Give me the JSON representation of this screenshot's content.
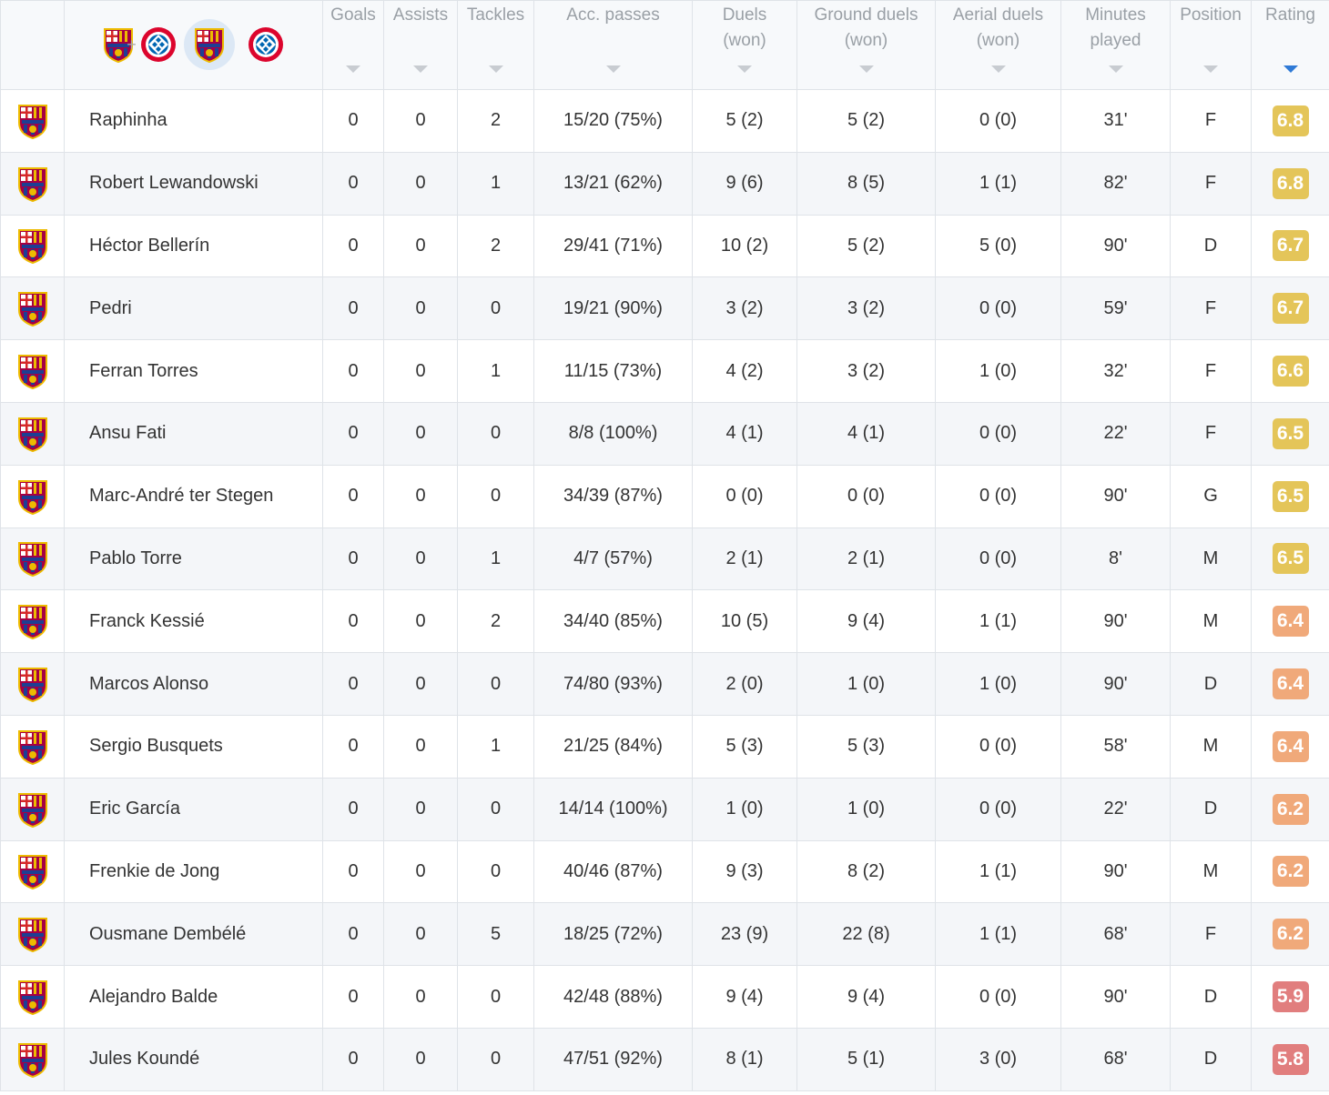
{
  "columns": [
    {
      "key": "goals",
      "label": "Goals"
    },
    {
      "key": "assists",
      "label": "Assists"
    },
    {
      "key": "tackles",
      "label": "Tackles"
    },
    {
      "key": "passes",
      "label": "Acc. passes"
    },
    {
      "key": "duels",
      "label": "Duels (won)"
    },
    {
      "key": "ground",
      "label": "Ground duels (won)"
    },
    {
      "key": "aerial",
      "label": "Aerial duels (won)"
    },
    {
      "key": "minutes",
      "label": "Minutes played"
    },
    {
      "key": "position",
      "label": "Position"
    },
    {
      "key": "rating",
      "label": "Rating"
    }
  ],
  "filters": {
    "both_separator": "+",
    "selected": "barcelona"
  },
  "colors": {
    "rating_high": "#e4c559",
    "rating_mid": "#f0a97a",
    "rating_low": "#e17e7e",
    "sort_active": "#2f7ad6"
  },
  "players": [
    {
      "name": "Raphinha",
      "goals": "0",
      "assists": "0",
      "tackles": "2",
      "passes": "15/20 (75%)",
      "duels": "5 (2)",
      "ground": "5 (2)",
      "aerial": "0 (0)",
      "minutes": "31'",
      "position": "F",
      "rating": "6.8"
    },
    {
      "name": "Robert Lewandowski",
      "goals": "0",
      "assists": "0",
      "tackles": "1",
      "passes": "13/21 (62%)",
      "duels": "9 (6)",
      "ground": "8 (5)",
      "aerial": "1 (1)",
      "minutes": "82'",
      "position": "F",
      "rating": "6.8"
    },
    {
      "name": "Héctor Bellerín",
      "goals": "0",
      "assists": "0",
      "tackles": "2",
      "passes": "29/41 (71%)",
      "duels": "10 (2)",
      "ground": "5 (2)",
      "aerial": "5 (0)",
      "minutes": "90'",
      "position": "D",
      "rating": "6.7"
    },
    {
      "name": "Pedri",
      "goals": "0",
      "assists": "0",
      "tackles": "0",
      "passes": "19/21 (90%)",
      "duels": "3 (2)",
      "ground": "3 (2)",
      "aerial": "0 (0)",
      "minutes": "59'",
      "position": "F",
      "rating": "6.7"
    },
    {
      "name": "Ferran Torres",
      "goals": "0",
      "assists": "0",
      "tackles": "1",
      "passes": "11/15 (73%)",
      "duels": "4 (2)",
      "ground": "3 (2)",
      "aerial": "1 (0)",
      "minutes": "32'",
      "position": "F",
      "rating": "6.6"
    },
    {
      "name": "Ansu Fati",
      "goals": "0",
      "assists": "0",
      "tackles": "0",
      "passes": "8/8 (100%)",
      "duels": "4 (1)",
      "ground": "4 (1)",
      "aerial": "0 (0)",
      "minutes": "22'",
      "position": "F",
      "rating": "6.5"
    },
    {
      "name": "Marc-André ter Stegen",
      "goals": "0",
      "assists": "0",
      "tackles": "0",
      "passes": "34/39 (87%)",
      "duels": "0 (0)",
      "ground": "0 (0)",
      "aerial": "0 (0)",
      "minutes": "90'",
      "position": "G",
      "rating": "6.5"
    },
    {
      "name": "Pablo Torre",
      "goals": "0",
      "assists": "0",
      "tackles": "1",
      "passes": "4/7 (57%)",
      "duels": "2 (1)",
      "ground": "2 (1)",
      "aerial": "0 (0)",
      "minutes": "8'",
      "position": "M",
      "rating": "6.5"
    },
    {
      "name": "Franck Kessié",
      "goals": "0",
      "assists": "0",
      "tackles": "2",
      "passes": "34/40 (85%)",
      "duels": "10 (5)",
      "ground": "9 (4)",
      "aerial": "1 (1)",
      "minutes": "90'",
      "position": "M",
      "rating": "6.4"
    },
    {
      "name": "Marcos Alonso",
      "goals": "0",
      "assists": "0",
      "tackles": "0",
      "passes": "74/80 (93%)",
      "duels": "2 (0)",
      "ground": "1 (0)",
      "aerial": "1 (0)",
      "minutes": "90'",
      "position": "D",
      "rating": "6.4"
    },
    {
      "name": "Sergio Busquets",
      "goals": "0",
      "assists": "0",
      "tackles": "1",
      "passes": "21/25 (84%)",
      "duels": "5 (3)",
      "ground": "5 (3)",
      "aerial": "0 (0)",
      "minutes": "58'",
      "position": "M",
      "rating": "6.4"
    },
    {
      "name": "Eric García",
      "goals": "0",
      "assists": "0",
      "tackles": "0",
      "passes": "14/14 (100%)",
      "duels": "1 (0)",
      "ground": "1 (0)",
      "aerial": "0 (0)",
      "minutes": "22'",
      "position": "D",
      "rating": "6.2"
    },
    {
      "name": "Frenkie de Jong",
      "goals": "0",
      "assists": "0",
      "tackles": "0",
      "passes": "40/46 (87%)",
      "duels": "9 (3)",
      "ground": "8 (2)",
      "aerial": "1 (1)",
      "minutes": "90'",
      "position": "M",
      "rating": "6.2"
    },
    {
      "name": "Ousmane Dembélé",
      "goals": "0",
      "assists": "0",
      "tackles": "5",
      "passes": "18/25 (72%)",
      "duels": "23 (9)",
      "ground": "22 (8)",
      "aerial": "1 (1)",
      "minutes": "68'",
      "position": "F",
      "rating": "6.2"
    },
    {
      "name": "Alejandro Balde",
      "goals": "0",
      "assists": "0",
      "tackles": "0",
      "passes": "42/48 (88%)",
      "duels": "9 (4)",
      "ground": "9 (4)",
      "aerial": "0 (0)",
      "minutes": "90'",
      "position": "D",
      "rating": "5.9"
    },
    {
      "name": "Jules Koundé",
      "goals": "0",
      "assists": "0",
      "tackles": "0",
      "passes": "47/51 (92%)",
      "duels": "8 (1)",
      "ground": "5 (1)",
      "aerial": "3 (0)",
      "minutes": "68'",
      "position": "D",
      "rating": "5.8"
    }
  ]
}
